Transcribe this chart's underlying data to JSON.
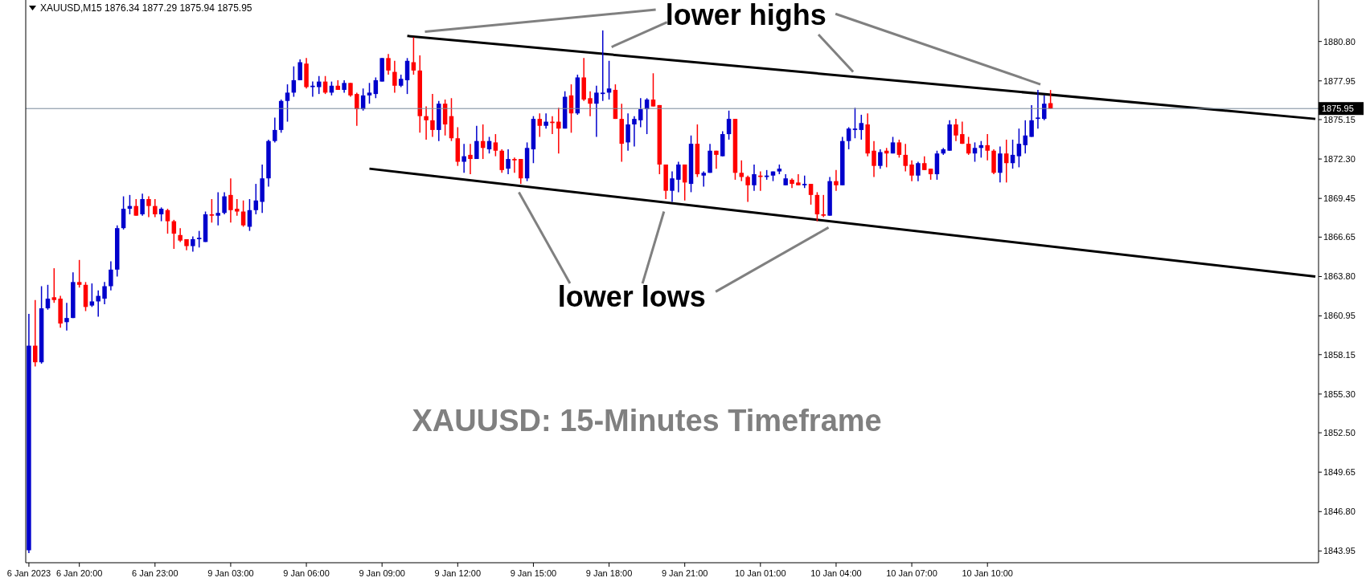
{
  "chart_data": {
    "type": "candlestick",
    "subtitle": "XAUUSD,M15 1876.34 1877.29 1875.94 1875.95",
    "annotations": [
      {
        "text": "lower highs",
        "y": 1878.6
      },
      "lower lows",
      "XAUUSD: 15-Minutes Timeframe"
    ],
    "categories": [
      "6 Jan 2023",
      null,
      null,
      null,
      null,
      null,
      null,
      null,
      "6 Jan 20:00",
      null,
      null,
      null,
      null,
      null,
      null,
      null,
      null,
      null,
      null,
      null,
      "6 Jan 23:00",
      null,
      null,
      null,
      null,
      null,
      null,
      null,
      null,
      null,
      null,
      null,
      "9 Jan 03:00",
      null,
      null,
      null,
      null,
      null,
      null,
      null,
      null,
      null,
      null,
      null,
      "9 Jan 06:00",
      null,
      null,
      null,
      null,
      null,
      null,
      null,
      null,
      null,
      null,
      null,
      "9 Jan 09:00",
      null,
      null,
      null,
      null,
      null,
      null,
      null,
      null,
      null,
      null,
      null,
      "9 Jan 12:00",
      null,
      null,
      null,
      null,
      null,
      null,
      null,
      null,
      null,
      null,
      null,
      "9 Jan 15:00",
      null,
      null,
      null,
      null,
      null,
      null,
      null,
      null,
      null,
      null,
      null,
      "9 Jan 18:00",
      null,
      null,
      null,
      null,
      null,
      null,
      null,
      null,
      null,
      null,
      null,
      "9 Jan 21:00",
      null,
      null,
      null,
      null,
      null,
      null,
      null,
      null,
      null,
      null,
      null,
      "10 Jan 01:00",
      null,
      null,
      null,
      null,
      null,
      null,
      null,
      null,
      null,
      null,
      null,
      "10 Jan 04:00",
      null,
      null,
      null,
      null,
      null,
      null,
      null,
      null,
      null,
      null,
      null,
      "10 Jan 07:00",
      null,
      null,
      null,
      null,
      null,
      null,
      null,
      null,
      null,
      null,
      null,
      "10 Jan 10:00",
      null,
      null,
      null,
      null,
      null,
      null,
      null,
      null,
      null,
      null,
      null,
      null,
      null,
      null,
      null,
      null,
      null,
      null,
      null,
      null,
      null,
      null,
      null,
      null,
      null,
      null,
      null,
      null,
      null,
      null,
      null,
      null,
      null,
      null,
      null,
      null,
      null,
      null,
      null,
      null,
      null,
      null,
      null,
      null,
      null,
      null,
      null,
      null,
      null,
      null,
      null,
      null
    ],
    "ohlc": [
      [
        1844.0,
        1861.1,
        1843.8,
        1858.8
      ],
      [
        1858.8,
        1862.1,
        1857.3,
        1857.6
      ],
      [
        1857.6,
        1863.1,
        1857.5,
        1861.5
      ],
      [
        1861.5,
        1863.2,
        1861.4,
        1862.2
      ],
      [
        1862.3,
        1864.4,
        1861.9,
        1862.1
      ],
      [
        1862.2,
        1862.4,
        1860.1,
        1860.4
      ],
      [
        1860.5,
        1861.9,
        1859.9,
        1860.8
      ],
      [
        1860.8,
        1864.1,
        1860.8,
        1863.4
      ],
      [
        1863.4,
        1865.0,
        1863.0,
        1863.2
      ],
      [
        1863.2,
        1863.4,
        1861.3,
        1861.6
      ],
      [
        1861.7,
        1863.3,
        1861.6,
        1862.0
      ],
      [
        1862.0,
        1862.8,
        1860.9,
        1862.4
      ],
      [
        1862.2,
        1863.4,
        1861.8,
        1863.1
      ],
      [
        1863.1,
        1864.9,
        1862.8,
        1864.3
      ],
      [
        1864.3,
        1867.5,
        1863.8,
        1867.3
      ],
      [
        1867.3,
        1869.6,
        1867.2,
        1868.7
      ],
      [
        1868.7,
        1869.7,
        1868.3,
        1868.9
      ],
      [
        1868.9,
        1869.4,
        1868.2,
        1868.2
      ],
      [
        1868.3,
        1869.8,
        1868.2,
        1869.4
      ],
      [
        1869.4,
        1869.6,
        1868.1,
        1868.9
      ],
      [
        1868.9,
        1869.4,
        1868.1,
        1868.3
      ],
      [
        1868.3,
        1868.8,
        1867.8,
        1868.7
      ],
      [
        1868.6,
        1868.7,
        1866.9,
        1867.8
      ],
      [
        1867.8,
        1867.9,
        1865.8,
        1866.9
      ],
      [
        1866.8,
        1867.3,
        1866.3,
        1866.4
      ],
      [
        1866.5,
        1866.5,
        1865.7,
        1866.0
      ],
      [
        1866.0,
        1866.7,
        1865.6,
        1866.5
      ],
      [
        1866.5,
        1867.1,
        1865.9,
        1866.6
      ],
      [
        1866.3,
        1868.5,
        1866.3,
        1868.3
      ],
      [
        1868.3,
        1869.4,
        1867.7,
        1868.2
      ],
      [
        1868.2,
        1869.9,
        1867.5,
        1868.4
      ],
      [
        1868.4,
        1869.9,
        1868.3,
        1869.6
      ],
      [
        1869.7,
        1870.9,
        1867.7,
        1868.6
      ],
      [
        1868.7,
        1869.4,
        1868.2,
        1868.5
      ],
      [
        1868.5,
        1869.3,
        1867.4,
        1867.5
      ],
      [
        1867.4,
        1869.4,
        1867.1,
        1868.6
      ],
      [
        1868.6,
        1870.5,
        1868.3,
        1869.3
      ],
      [
        1869.2,
        1871.9,
        1868.4,
        1870.9
      ],
      [
        1870.9,
        1873.7,
        1870.3,
        1873.6
      ],
      [
        1873.6,
        1875.3,
        1873.5,
        1874.4
      ],
      [
        1874.4,
        1876.6,
        1874.2,
        1876.5
      ],
      [
        1876.5,
        1877.7,
        1875.0,
        1877.1
      ],
      [
        1877.1,
        1879.0,
        1876.8,
        1878.0
      ],
      [
        1878.0,
        1879.5,
        1878.0,
        1879.3
      ],
      [
        1879.2,
        1879.6,
        1877.4,
        1877.5
      ],
      [
        1877.5,
        1877.9,
        1876.8,
        1877.6
      ],
      [
        1877.5,
        1878.3,
        1877.0,
        1877.9
      ],
      [
        1877.9,
        1878.3,
        1877.0,
        1877.1
      ],
      [
        1877.1,
        1877.9,
        1876.9,
        1877.6
      ],
      [
        1877.6,
        1878.0,
        1877.3,
        1877.3
      ],
      [
        1877.3,
        1878.0,
        1877.1,
        1877.8
      ],
      [
        1877.8,
        1877.8,
        1876.8,
        1876.9
      ],
      [
        1877.0,
        1877.1,
        1874.7,
        1875.9
      ],
      [
        1875.9,
        1877.4,
        1875.8,
        1876.9
      ],
      [
        1876.9,
        1877.8,
        1876.3,
        1877.1
      ],
      [
        1877.0,
        1878.2,
        1876.7,
        1878.0
      ],
      [
        1877.9,
        1879.6,
        1877.9,
        1879.6
      ],
      [
        1879.6,
        1879.9,
        1878.4,
        1878.7
      ],
      [
        1878.6,
        1879.4,
        1877.1,
        1877.6
      ],
      [
        1877.6,
        1878.4,
        1877.5,
        1878.1
      ],
      [
        1878.0,
        1879.6,
        1877.0,
        1879.4
      ],
      [
        1879.3,
        1881.1,
        1878.4,
        1878.7
      ],
      [
        1878.7,
        1879.8,
        1874.2,
        1875.4
      ],
      [
        1875.4,
        1876.1,
        1873.7,
        1875.1
      ],
      [
        1875.1,
        1877.0,
        1873.9,
        1874.4
      ],
      [
        1874.4,
        1876.5,
        1873.6,
        1876.3
      ],
      [
        1876.3,
        1876.6,
        1874.0,
        1874.8
      ],
      [
        1875.4,
        1876.7,
        1873.6,
        1873.8
      ],
      [
        1873.8,
        1874.6,
        1871.8,
        1872.1
      ],
      [
        1872.1,
        1873.4,
        1871.3,
        1872.5
      ],
      [
        1872.6,
        1873.4,
        1871.2,
        1872.3
      ],
      [
        1872.3,
        1874.7,
        1872.3,
        1873.6
      ],
      [
        1873.6,
        1874.8,
        1872.3,
        1873.1
      ],
      [
        1873.0,
        1873.9,
        1872.7,
        1873.6
      ],
      [
        1873.5,
        1874.1,
        1872.5,
        1872.9
      ],
      [
        1872.9,
        1873.0,
        1871.3,
        1871.5
      ],
      [
        1871.6,
        1873.0,
        1871.2,
        1872.3
      ],
      [
        1872.3,
        1872.4,
        1871.3,
        1872.2
      ],
      [
        1872.3,
        1872.3,
        1870.5,
        1870.9
      ],
      [
        1870.9,
        1873.5,
        1870.7,
        1873.1
      ],
      [
        1873.0,
        1875.4,
        1872.0,
        1875.2
      ],
      [
        1875.2,
        1875.6,
        1873.9,
        1874.7
      ],
      [
        1874.7,
        1875.6,
        1874.5,
        1875.0
      ],
      [
        1875.0,
        1875.4,
        1874.1,
        1874.9
      ],
      [
        1875.0,
        1876.0,
        1872.7,
        1874.5
      ],
      [
        1874.5,
        1877.2,
        1874.5,
        1876.8
      ],
      [
        1876.9,
        1877.7,
        1874.2,
        1875.6
      ],
      [
        1875.6,
        1878.4,
        1875.5,
        1878.2
      ],
      [
        1878.2,
        1879.6,
        1876.5,
        1876.6
      ],
      [
        1876.7,
        1877.2,
        1875.4,
        1876.3
      ],
      [
        1876.3,
        1877.6,
        1873.9,
        1877.1
      ],
      [
        1877.0,
        1881.6,
        1876.5,
        1877.1
      ],
      [
        1877.1,
        1879.4,
        1876.6,
        1877.4
      ],
      [
        1877.3,
        1877.7,
        1875.2,
        1875.2
      ],
      [
        1875.2,
        1876.3,
        1872.1,
        1873.4
      ],
      [
        1873.5,
        1875.6,
        1872.9,
        1874.8
      ],
      [
        1874.8,
        1875.4,
        1873.2,
        1875.2
      ],
      [
        1875.1,
        1876.7,
        1874.6,
        1875.9
      ],
      [
        1875.9,
        1876.7,
        1874.1,
        1876.6
      ],
      [
        1876.6,
        1878.5,
        1876.1,
        1876.1
      ],
      [
        1876.2,
        1876.2,
        1871.2,
        1871.9
      ],
      [
        1871.9,
        1871.9,
        1869.4,
        1870.0
      ],
      [
        1870.0,
        1871.4,
        1869.2,
        1870.9
      ],
      [
        1870.8,
        1872.1,
        1869.9,
        1871.9
      ],
      [
        1871.9,
        1871.9,
        1869.3,
        1870.6
      ],
      [
        1870.5,
        1874.0,
        1869.9,
        1873.4
      ],
      [
        1873.4,
        1874.8,
        1871.0,
        1871.2
      ],
      [
        1871.1,
        1871.4,
        1870.3,
        1871.3
      ],
      [
        1871.3,
        1873.4,
        1871.3,
        1872.9
      ],
      [
        1872.9,
        1872.9,
        1871.6,
        1872.6
      ],
      [
        1872.5,
        1874.3,
        1872.5,
        1874.1
      ],
      [
        1874.1,
        1875.8,
        1873.7,
        1875.2
      ],
      [
        1875.2,
        1875.2,
        1870.8,
        1871.3
      ],
      [
        1871.3,
        1872.2,
        1870.7,
        1871.0
      ],
      [
        1871.0,
        1871.1,
        1869.2,
        1870.4
      ],
      [
        1870.4,
        1871.9,
        1870.0,
        1871.2
      ],
      [
        1871.1,
        1871.4,
        1870.0,
        1871.0
      ],
      [
        1871.0,
        1871.5,
        1870.8,
        1871.1
      ],
      [
        1871.1,
        1871.4,
        1870.7,
        1871.4
      ],
      [
        1871.4,
        1871.9,
        1871.2,
        1871.6
      ],
      [
        1870.4,
        1871.2,
        1870.4,
        1870.9
      ],
      [
        1870.8,
        1870.9,
        1870.2,
        1870.5
      ],
      [
        1870.6,
        1871.2,
        1870.4,
        1870.4
      ],
      [
        1870.4,
        1871.1,
        1870.2,
        1870.5
      ],
      [
        1870.5,
        1870.5,
        1869.0,
        1869.7
      ],
      [
        1869.7,
        1869.9,
        1867.8,
        1868.3
      ],
      [
        1868.3,
        1869.7,
        1868.1,
        1868.2
      ],
      [
        1868.2,
        1871.0,
        1868.2,
        1870.7
      ],
      [
        1870.7,
        1871.5,
        1870.0,
        1870.4
      ],
      [
        1870.4,
        1873.9,
        1870.4,
        1873.6
      ],
      [
        1873.6,
        1874.6,
        1873.0,
        1874.5
      ],
      [
        1874.4,
        1876.0,
        1873.8,
        1874.5
      ],
      [
        1874.4,
        1875.5,
        1873.7,
        1874.9
      ],
      [
        1874.8,
        1875.6,
        1872.5,
        1872.7
      ],
      [
        1872.9,
        1873.6,
        1871.0,
        1871.8
      ],
      [
        1871.8,
        1873.0,
        1871.6,
        1872.8
      ],
      [
        1872.9,
        1873.1,
        1871.7,
        1872.7
      ],
      [
        1872.7,
        1873.9,
        1872.7,
        1873.5
      ],
      [
        1873.5,
        1873.7,
        1872.4,
        1872.6
      ],
      [
        1872.6,
        1873.4,
        1871.4,
        1871.8
      ],
      [
        1871.9,
        1872.2,
        1870.7,
        1871.1
      ],
      [
        1871.1,
        1872.1,
        1870.7,
        1872.0
      ],
      [
        1872.0,
        1872.5,
        1871.5,
        1871.5
      ],
      [
        1871.6,
        1871.6,
        1870.8,
        1871.2
      ],
      [
        1871.2,
        1872.9,
        1870.8,
        1872.7
      ],
      [
        1872.7,
        1873.1,
        1872.6,
        1873.0
      ],
      [
        1872.9,
        1875.1,
        1872.9,
        1874.8
      ],
      [
        1874.8,
        1875.2,
        1873.6,
        1874.0
      ],
      [
        1874.1,
        1875.0,
        1873.4,
        1873.4
      ],
      [
        1873.4,
        1873.9,
        1872.6,
        1872.7
      ],
      [
        1872.7,
        1873.5,
        1872.1,
        1873.1
      ],
      [
        1873.1,
        1873.6,
        1872.4,
        1873.3
      ],
      [
        1873.3,
        1874.1,
        1872.2,
        1872.9
      ],
      [
        1872.9,
        1873.0,
        1871.2,
        1871.3
      ],
      [
        1871.3,
        1873.2,
        1870.6,
        1872.7
      ],
      [
        1872.7,
        1873.7,
        1870.6,
        1872.0
      ],
      [
        1872.0,
        1873.7,
        1871.6,
        1872.6
      ],
      [
        1872.5,
        1874.5,
        1871.7,
        1873.4
      ],
      [
        1873.3,
        1875.1,
        1872.7,
        1874.0
      ],
      [
        1873.9,
        1876.2,
        1873.9,
        1875.1
      ],
      [
        1875.2,
        1877.3,
        1874.5,
        1875.3
      ],
      [
        1875.2,
        1876.9,
        1875.1,
        1876.3
      ],
      [
        1876.34,
        1877.29,
        1875.94,
        1875.95
      ],
      null,
      null,
      null,
      null,
      null,
      null,
      null,
      null,
      null,
      null,
      null,
      null,
      null,
      null,
      null,
      null,
      null,
      null,
      null,
      null,
      null,
      null,
      null,
      null,
      null,
      null,
      null,
      null,
      null,
      null,
      null,
      null,
      null,
      null,
      null,
      null,
      null,
      null,
      null,
      null,
      null,
      null
    ],
    "colors": [
      "#0000cc",
      "#ff0000",
      "#0000cc",
      "#0000cc",
      "#ff0000",
      "#ff0000",
      "#0000cc",
      "#0000cc",
      "#ff0000",
      "#ff0000",
      "#0000cc",
      "#0000cc",
      "#0000cc",
      "#0000cc",
      "#0000cc",
      "#0000cc",
      "#0000cc",
      "#ff0000",
      "#0000cc",
      "#ff0000",
      "#ff0000",
      "#0000cc",
      "#ff0000",
      "#ff0000",
      "#ff0000",
      "#ff0000",
      "#0000cc",
      "#0000cc",
      "#0000cc",
      "#ff0000",
      "#0000cc",
      "#0000cc",
      "#ff0000",
      "#ff0000",
      "#ff0000",
      "#0000cc",
      "#0000cc",
      "#0000cc",
      "#0000cc",
      "#0000cc",
      "#0000cc",
      "#0000cc",
      "#0000cc",
      "#0000cc",
      "#ff0000",
      "#0000cc",
      "#0000cc",
      "#ff0000",
      "#0000cc",
      "#ff0000",
      "#0000cc",
      "#ff0000",
      "#ff0000",
      "#0000cc",
      "#0000cc",
      "#0000cc",
      "#0000cc",
      "#ff0000",
      "#ff0000",
      "#0000cc",
      "#0000cc",
      "#ff0000",
      "#ff0000",
      "#ff0000",
      "#ff0000",
      "#0000cc",
      "#ff0000",
      "#ff0000",
      "#ff0000",
      "#0000cc",
      "#ff0000",
      "#0000cc",
      "#ff0000",
      "#0000cc",
      "#ff0000",
      "#ff0000",
      "#0000cc",
      "#ff0000",
      "#ff0000",
      "#0000cc",
      "#0000cc",
      "#ff0000",
      "#0000cc",
      "#ff0000",
      "#ff0000",
      "#0000cc",
      "#ff0000",
      "#0000cc",
      "#ff0000",
      "#ff0000",
      "#0000cc",
      "#0000cc",
      "#0000cc",
      "#ff0000",
      "#ff0000",
      "#0000cc",
      "#0000cc",
      "#0000cc",
      "#0000cc",
      "#ff0000",
      "#ff0000",
      "#ff0000",
      "#0000cc",
      "#0000cc",
      "#ff0000",
      "#0000cc",
      "#ff0000",
      "#0000cc",
      "#0000cc",
      "#ff0000",
      "#0000cc",
      "#0000cc",
      "#ff0000",
      "#ff0000",
      "#ff0000",
      "#0000cc",
      "#ff0000",
      "#0000cc",
      "#0000cc",
      "#0000cc",
      "#0000cc",
      "#ff0000",
      "#ff0000",
      "#0000cc",
      "#ff0000",
      "#ff0000",
      "#ff0000",
      "#0000cc",
      "#ff0000",
      "#0000cc",
      "#0000cc",
      "#0000cc",
      "#0000cc",
      "#ff0000",
      "#ff0000",
      "#0000cc",
      "#ff0000",
      "#0000cc",
      "#ff0000",
      "#ff0000",
      "#ff0000",
      "#0000cc",
      "#ff0000",
      "#ff0000",
      "#0000cc",
      "#0000cc",
      "#0000cc",
      "#ff0000",
      "#ff0000",
      "#ff0000",
      "#0000cc",
      "#0000cc",
      "#ff0000",
      "#ff0000",
      "#0000cc",
      "#ff0000",
      "#0000cc",
      "#0000cc",
      "#0000cc",
      "#0000cc",
      "#0000cc",
      "#0000cc",
      "#ff0000",
      null,
      null,
      null,
      null,
      null,
      null,
      null,
      null,
      null,
      null,
      null,
      null,
      null,
      null,
      null,
      null,
      null,
      null,
      null,
      null,
      null,
      null,
      null,
      null,
      null,
      null,
      null,
      null,
      null,
      null,
      null,
      null,
      null,
      null,
      null,
      null,
      null,
      null,
      null,
      null,
      null,
      null
    ],
    "series": [
      {
        "type": "line",
        "color": "#000000",
        "values": [
          null,
          null,
          null,
          null,
          null,
          null,
          null,
          null,
          null,
          null,
          null,
          null,
          null,
          null,
          null,
          null,
          null,
          null,
          null,
          null,
          null,
          null,
          null,
          null,
          null,
          null,
          null,
          null,
          null,
          null,
          null,
          null,
          null,
          null,
          null,
          null,
          null,
          null,
          null,
          null,
          null,
          null,
          null,
          null,
          null,
          null,
          null,
          null,
          null,
          null,
          null,
          null,
          null,
          null,
          null,
          null,
          null,
          null,
          null,
          null,
          1881.2,
          null,
          null,
          null,
          null,
          null,
          null,
          null,
          null,
          null,
          null,
          null,
          null,
          null,
          null,
          null,
          null,
          null,
          null,
          null,
          null,
          null,
          null,
          null,
          null,
          null,
          null,
          null,
          null,
          null,
          null,
          null,
          null,
          null,
          null,
          null,
          null,
          null,
          null,
          null,
          null,
          null,
          null,
          null,
          null,
          null,
          null,
          null,
          null,
          null,
          null,
          null,
          null,
          null,
          null,
          null,
          null,
          null,
          null,
          null,
          null,
          null,
          null,
          null,
          null,
          null,
          null,
          null,
          null,
          null,
          null,
          null,
          null,
          null,
          null,
          null,
          null,
          null,
          null,
          null,
          null,
          null,
          null,
          null,
          null,
          null,
          null,
          null,
          null,
          null,
          null,
          null,
          null,
          null,
          null,
          null,
          null,
          null,
          null,
          null,
          null,
          null,
          null,
          null,
          null,
          null,
          null,
          null,
          null,
          null,
          null,
          null,
          null,
          null,
          null,
          null,
          null,
          null,
          null,
          null,
          null,
          null,
          null,
          null,
          null,
          null,
          null,
          null,
          null,
          null,
          null,
          null,
          null,
          null,
          null,
          null,
          null,
          null,
          null,
          null,
          null,
          null,
          null,
          null,
          1875.2
        ]
      },
      {
        "type": "line",
        "color": "#000000",
        "values": [
          null,
          null,
          null,
          null,
          null,
          null,
          null,
          null,
          null,
          null,
          null,
          null,
          null,
          null,
          null,
          null,
          null,
          null,
          null,
          null,
          null,
          null,
          null,
          null,
          null,
          null,
          null,
          null,
          null,
          null,
          null,
          null,
          null,
          null,
          null,
          null,
          null,
          null,
          null,
          null,
          null,
          null,
          null,
          null,
          null,
          null,
          null,
          null,
          null,
          null,
          null,
          null,
          null,
          null,
          1871.6,
          null,
          null,
          null,
          null,
          null,
          null,
          null,
          null,
          null,
          null,
          null,
          null,
          null,
          null,
          null,
          null,
          null,
          null,
          null,
          null,
          null,
          null,
          null,
          null,
          null,
          null,
          null,
          null,
          null,
          null,
          null,
          null,
          null,
          null,
          null,
          null,
          null,
          null,
          null,
          null,
          null,
          null,
          null,
          null,
          null,
          null,
          null,
          null,
          null,
          null,
          null,
          null,
          null,
          null,
          null,
          null,
          null,
          null,
          null,
          null,
          null,
          null,
          null,
          null,
          null,
          null,
          null,
          null,
          null,
          null,
          null,
          null,
          null,
          null,
          null,
          null,
          null,
          null,
          null,
          null,
          null,
          null,
          null,
          null,
          null,
          null,
          null,
          null,
          null,
          null,
          null,
          null,
          null,
          null,
          null,
          null,
          null,
          null,
          null,
          null,
          null,
          null,
          null,
          null,
          null,
          null,
          null,
          null,
          null,
          null,
          null,
          null,
          null,
          null,
          null,
          null,
          null,
          null,
          null,
          null,
          null,
          null,
          null,
          null,
          null,
          null,
          null,
          null,
          null,
          null,
          null,
          null,
          null,
          null,
          null,
          null,
          null,
          null,
          null,
          null,
          null,
          null,
          null,
          null,
          null,
          null,
          null,
          null,
          null,
          1863.8
        ]
      }
    ],
    "ref_lines": [
      {
        "axis": "y",
        "value": 1875.95,
        "label": "1875.95",
        "color": "#778899"
      }
    ],
    "ylim": [
      1843.1,
      1883.8
    ],
    "yticks": [
      1843.95,
      {
        "value": 1846.8,
        "label": "1846.80"
      },
      1849.65,
      {
        "value": 1852.5,
        "label": "1852.50"
      },
      {
        "value": 1855.3,
        "label": "1855.30"
      },
      1858.15,
      1860.95,
      {
        "value": 1863.8,
        "label": "1863.80"
      },
      1866.65,
      1869.45,
      {
        "value": 1872.3,
        "label": "1872.30"
      },
      1875.15,
      1877.95,
      {
        "value": 1880.8,
        "label": "1880.80"
      }
    ]
  }
}
